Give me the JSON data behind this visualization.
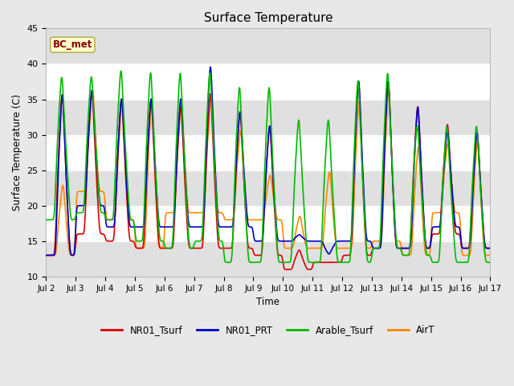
{
  "title": "Surface Temperature",
  "xlabel": "Time",
  "ylabel": "Surface Temperature (C)",
  "ylim": [
    10,
    45
  ],
  "xlim_days": [
    2,
    17
  ],
  "annotation_text": "BC_met",
  "annotation_color": "#8B0000",
  "annotation_bg": "#FFFFCC",
  "annotation_border": "#AAAA44",
  "series_colors": {
    "NR01_Tsurf": "#DD0000",
    "NR01_PRT": "#0000CC",
    "Arable_Tsurf": "#00BB00",
    "AirT": "#FF8800"
  },
  "series_lw": 1.2,
  "bg_color": "#E8E8E8",
  "plot_bg": "#FFFFFF",
  "band_color": "#E0E0E0",
  "yticks": [
    10,
    15,
    20,
    25,
    30,
    35,
    40,
    45
  ],
  "xtick_positions": [
    2,
    3,
    4,
    5,
    6,
    7,
    8,
    9,
    10,
    11,
    12,
    13,
    14,
    15,
    16,
    17
  ],
  "xtick_labels": [
    "Jul 2",
    "Jul 3",
    "Jul 4",
    "Jul 5",
    "Jul 6",
    "Jul 7",
    "Jul 8",
    "Jul 9",
    "Jul 10",
    "Jul 11",
    "Jul 12",
    "Jul 13",
    "Jul 14",
    "Jul 15",
    "Jul 16",
    "Jul 17"
  ],
  "legend_labels": [
    "NR01_Tsurf",
    "NR01_PRT",
    "Arable_Tsurf",
    "AirT"
  ],
  "legend_colors": [
    "#DD0000",
    "#0000CC",
    "#00BB00",
    "#FF8800"
  ],
  "figsize": [
    6.4,
    4.8
  ],
  "dpi": 100
}
